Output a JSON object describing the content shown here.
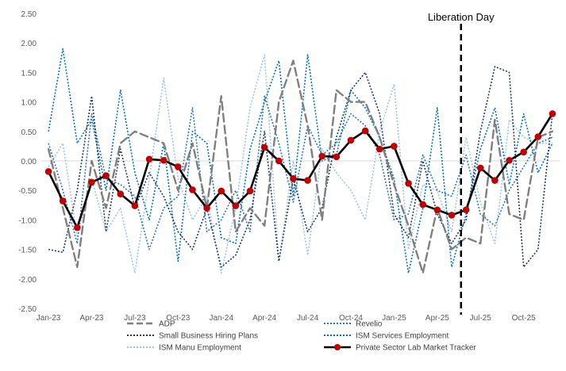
{
  "chart_data": {
    "type": "line",
    "title": "",
    "xlabel": "",
    "ylabel": "",
    "ylim": [
      -2.5,
      2.5
    ],
    "yticks": [
      "2.50",
      "2.00",
      "1.50",
      "1.00",
      "0.50",
      "0.00",
      "-0.50",
      "-1.00",
      "-1.50",
      "-2.00",
      "-2.50"
    ],
    "x": [
      "Jan-23",
      "Feb-23",
      "Mar-23",
      "Apr-23",
      "May-23",
      "Jun-23",
      "Jul-23",
      "Aug-23",
      "Sep-23",
      "Oct-23",
      "Nov-23",
      "Dec-23",
      "Jan-24",
      "Feb-24",
      "Mar-24",
      "Apr-24",
      "May-24",
      "Jun-24",
      "Jul-24",
      "Aug-24",
      "Sep-24",
      "Oct-24",
      "Nov-24",
      "Dec-24",
      "Jan-25",
      "Feb-25",
      "Mar-25",
      "Apr-25",
      "May-25",
      "Jun-25",
      "Jul-25",
      "Aug-25",
      "Sep-25",
      "Oct-25",
      "Nov-25",
      "Dec-25"
    ],
    "xticks": [
      "Jan-23",
      "Apr-23",
      "Jul-23",
      "Oct-23",
      "Jan-24",
      "Apr-24",
      "Jul-24",
      "Oct-24",
      "Jan-25",
      "Apr-25",
      "Jul-25",
      "Oct-25"
    ],
    "grid": false,
    "legend_position": "bottom",
    "annotation": {
      "label": "Liberation Day",
      "x": "Jun-25"
    },
    "series": [
      {
        "name": "ADP",
        "color": "#7f7f7f",
        "style": "dashed",
        "values": [
          0.2,
          -0.8,
          -1.8,
          0.0,
          -0.8,
          0.3,
          0.5,
          0.4,
          0.3,
          -0.5,
          0.3,
          -0.8,
          1.1,
          -1.2,
          -0.8,
          -1.1,
          1.0,
          1.7,
          0.6,
          -1.0,
          1.2,
          1.0,
          1.0,
          0.4,
          -0.4,
          -1.1,
          -1.9,
          -0.8,
          -1.5,
          -1.3,
          -1.4,
          0.7,
          -0.9,
          -1.0,
          0.4,
          0.5
        ]
      },
      {
        "name": "Revelio",
        "color": "#2e75b6",
        "style": "dotted",
        "values": [
          0.3,
          -0.5,
          -1.4,
          0.8,
          -0.3,
          -0.4,
          -0.6,
          -1.5,
          -0.8,
          -0.6,
          0.9,
          -1.2,
          -1.0,
          -0.5,
          -1.2,
          1.1,
          0.3,
          -0.7,
          0.6,
          0.1,
          0.3,
          0.8,
          0.6,
          0.1,
          -1.0,
          -0.9,
          0.1,
          -0.5,
          -0.6,
          0.1,
          -0.9,
          -1.1,
          -0.5,
          -0.1,
          0.3,
          0.4
        ]
      },
      {
        "name": "Small Business Hiring Plans",
        "color": "#1f3864",
        "style": "dotted",
        "values": [
          -1.5,
          -1.55,
          -0.5,
          1.1,
          -1.2,
          0.2,
          -0.8,
          -0.2,
          -0.6,
          -1.2,
          -1.5,
          -0.8,
          -1.8,
          -1.6,
          -1.0,
          0.5,
          -1.7,
          -0.3,
          -1.2,
          -0.8,
          0.4,
          1.2,
          1.5,
          0.8,
          -0.9,
          -1.3,
          0.0,
          -0.9,
          -1.4,
          -1.0,
          0.5,
          1.6,
          1.5,
          -1.8,
          -1.5,
          0.8
        ]
      },
      {
        "name": "ISM Services Employment",
        "color": "#0070c0",
        "style": "dotted",
        "values": [
          0.5,
          1.9,
          0.3,
          0.7,
          -0.5,
          1.2,
          -0.2,
          -1.0,
          0.3,
          -1.7,
          0.5,
          0.3,
          -1.3,
          -1.4,
          0.2,
          1.0,
          1.7,
          -0.6,
          1.8,
          0.0,
          0.1,
          1.2,
          0.9,
          0.4,
          -0.3,
          -1.9,
          -0.8,
          0.9,
          -1.8,
          -0.9,
          0.2,
          0.9,
          -0.4,
          0.8,
          -0.2,
          0.3
        ]
      },
      {
        "name": "ISM Manu Employment",
        "color": "#9dc3e6",
        "style": "dotted",
        "values": [
          -0.1,
          0.3,
          -1.3,
          -0.3,
          -1.2,
          -0.8,
          -1.9,
          -0.3,
          1.4,
          -0.3,
          -1.0,
          -0.6,
          -1.9,
          -0.8,
          0.9,
          1.8,
          -1.7,
          0.0,
          -1.6,
          0.2,
          -0.2,
          -0.5,
          -1.0,
          0.5,
          1.3,
          -1.5,
          -0.4,
          -0.5,
          -1.2,
          0.4,
          -0.7,
          -1.4,
          0.7,
          0.4,
          0.3,
          0.3
        ]
      },
      {
        "name": "Private Sector Lab Market Tracker",
        "color": "#000000",
        "marker_color": "#c00000",
        "style": "solid",
        "values": [
          -0.18,
          -0.68,
          -1.13,
          -0.36,
          -0.25,
          -0.56,
          -0.76,
          0.03,
          0.01,
          -0.1,
          -0.49,
          -0.8,
          -0.51,
          -0.76,
          -0.51,
          0.23,
          0.0,
          -0.3,
          -0.33,
          0.08,
          0.07,
          0.35,
          0.51,
          0.2,
          0.25,
          -0.38,
          -0.74,
          -0.83,
          -0.92,
          -0.83,
          -0.12,
          -0.33,
          0.01,
          0.15,
          0.41,
          0.8
        ]
      }
    ]
  }
}
